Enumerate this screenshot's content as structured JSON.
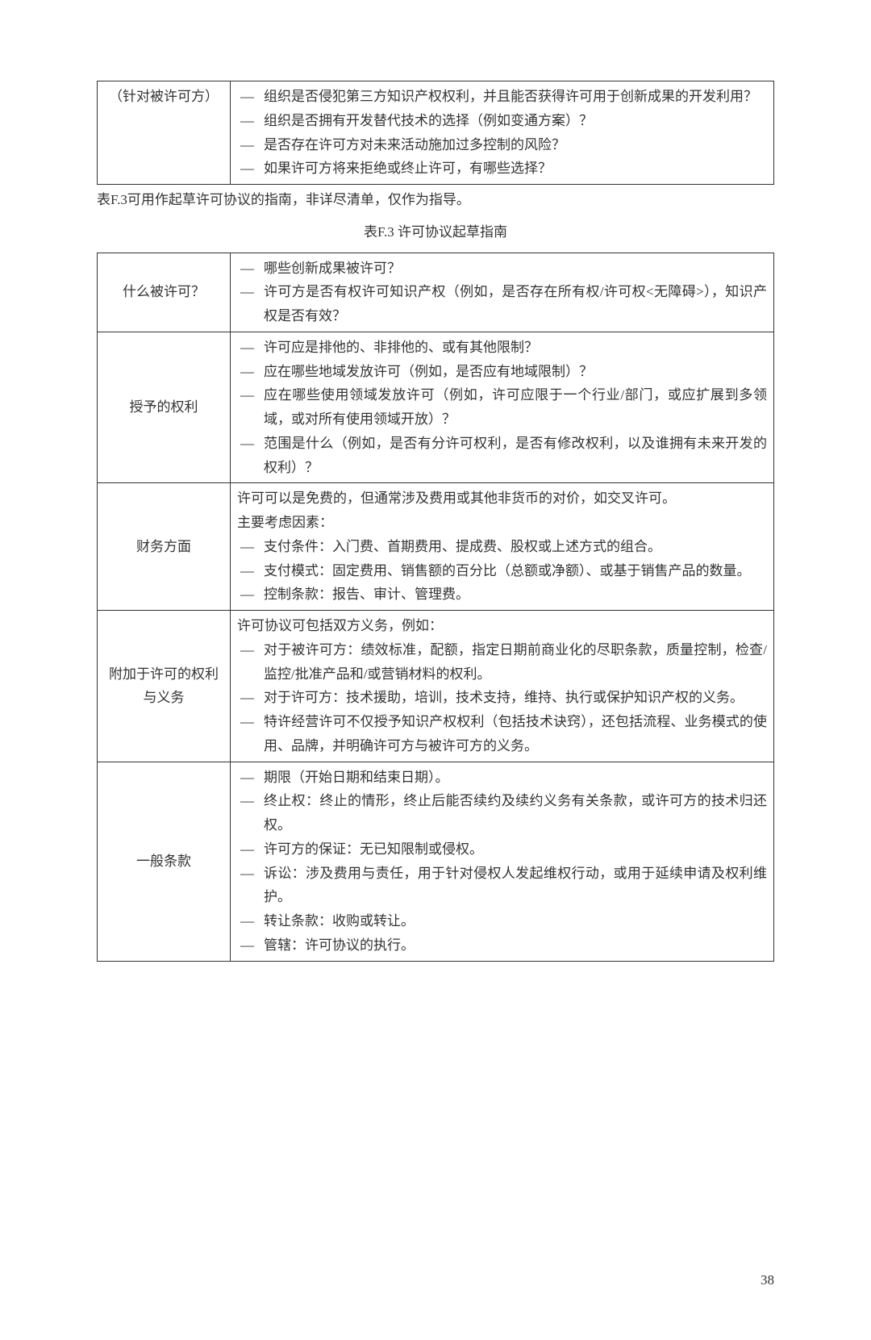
{
  "topTable": {
    "label": "（针对被许可方）",
    "items": [
      "组织是否侵犯第三方知识产权权利，并且能否获得许可用于创新成果的开发利用？",
      "组织是否拥有开发替代技术的选择（例如变通方案）？",
      "是否存在许可方对未来活动施加过多控制的风险？",
      "如果许可方将来拒绝或终止许可，有哪些选择？"
    ]
  },
  "intro": "表F.3可用作起草许可协议的指南，非详尽清单，仅作为指导。",
  "tableTitle": "表F.3 许可协议起草指南",
  "rows": [
    {
      "label": "什么被许可？",
      "lines": [
        {
          "type": "dash",
          "text": "哪些创新成果被许可？"
        },
        {
          "type": "dash",
          "text": "许可方是否有权许可知识产权（例如，是否存在所有权/许可权<无障碍>），知识产权是否有效？"
        }
      ]
    },
    {
      "label": "授予的权利",
      "lines": [
        {
          "type": "dash",
          "text": "许可应是排他的、非排他的、或有其他限制？"
        },
        {
          "type": "dash",
          "text": "应在哪些地域发放许可（例如，是否应有地域限制）？"
        },
        {
          "type": "dash",
          "text": "应在哪些使用领域发放许可（例如，许可应限于一个行业/部门，或应扩展到多领域，或对所有使用领域开放）？"
        },
        {
          "type": "dash",
          "text": "范围是什么（例如，是否有分许可权利，是否有修改权利，以及谁拥有未来开发的权利）？"
        }
      ]
    },
    {
      "label": "财务方面",
      "lines": [
        {
          "type": "plain",
          "text": "许可可以是免费的，但通常涉及费用或其他非货币的对价，如交叉许可。"
        },
        {
          "type": "plain",
          "text": "主要考虑因素："
        },
        {
          "type": "dash",
          "text": "支付条件：入门费、首期费用、提成费、股权或上述方式的组合。"
        },
        {
          "type": "dash",
          "text": "支付模式：固定费用、销售额的百分比（总额或净额）、或基于销售产品的数量。"
        },
        {
          "type": "dash",
          "text": "控制条款：报告、审计、管理费。"
        }
      ]
    },
    {
      "label": "附加于许可的权利与义务",
      "lines": [
        {
          "type": "plain",
          "text": "许可协议可包括双方义务，例如："
        },
        {
          "type": "dash",
          "text": "对于被许可方：绩效标准，配额，指定日期前商业化的尽职条款，质量控制，检查/监控/批准产品和/或营销材料的权利。"
        },
        {
          "type": "dash",
          "text": "对于许可方：技术援助，培训，技术支持，维持、执行或保护知识产权的义务。"
        },
        {
          "type": "dash",
          "text": "特许经营许可不仅授予知识产权权利（包括技术诀窍），还包括流程、业务模式的使用、品牌，并明确许可方与被许可方的义务。"
        }
      ]
    },
    {
      "label": "一般条款",
      "lines": [
        {
          "type": "dash",
          "text": "期限（开始日期和结束日期）。"
        },
        {
          "type": "dash",
          "text": "终止权：终止的情形，终止后能否续约及续约义务有关条款，或许可方的技术归还权。"
        },
        {
          "type": "dash",
          "text": "许可方的保证：无已知限制或侵权。"
        },
        {
          "type": "dash",
          "text": "诉讼：涉及费用与责任，用于针对侵权人发起维权行动，或用于延续申请及权利维护。"
        },
        {
          "type": "dash",
          "text": "转让条款：收购或转让。"
        },
        {
          "type": "dash",
          "text": "管辖：许可协议的执行。"
        }
      ]
    }
  ],
  "pageNumber": "38"
}
